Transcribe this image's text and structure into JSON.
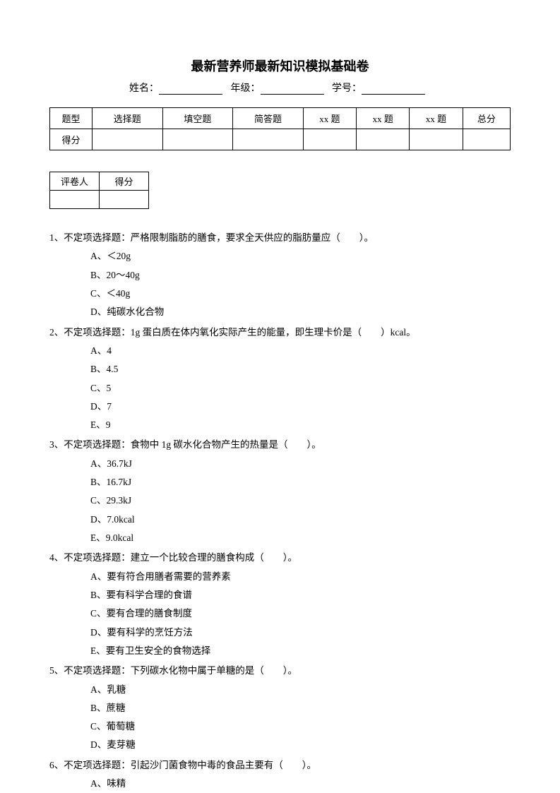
{
  "title": "最新营养师最新知识模拟基础卷",
  "info": {
    "name_label": "姓名：",
    "grade_label": " 年级：",
    "id_label": " 学号："
  },
  "score_table": {
    "row1": [
      "题型",
      "选择题",
      "填空题",
      "简答题",
      "xx 题",
      "xx 题",
      "xx 题",
      "总分"
    ],
    "row2_label": "得分"
  },
  "grader_table": {
    "grader": "评卷人",
    "score": "得分"
  },
  "questions": [
    {
      "num": "1、",
      "stem": "不定项选择题：严格限制脂肪的膳食，要求全天供应的脂肪量应（　　）。",
      "options": [
        "A、＜20g",
        "B、20～40g",
        "C、＜40g",
        "D、纯碳水化合物"
      ]
    },
    {
      "num": "2、",
      "stem": "不定项选择题：1g 蛋白质在体内氧化实际产生的能量，即生理卡价是（　　）kcal。",
      "options": [
        "A、4",
        "B、4.5",
        "C、5",
        "D、7",
        "E、9"
      ]
    },
    {
      "num": "3、",
      "stem": "不定项选择题：食物中 1g 碳水化合物产生的热量是（　　）。",
      "options": [
        "A、36.7kJ",
        "B、16.7kJ",
        "C、29.3kJ",
        "D、7.0kcal",
        "E、9.0kcal"
      ]
    },
    {
      "num": "4、",
      "stem": "不定项选择题：建立一个比较合理的膳食构成（　　）。",
      "options": [
        "A、要有符合用膳者需要的营养素",
        "B、要有科学合理的食谱",
        "C、要有合理的膳食制度",
        "D、要有科学的烹饪方法",
        "E、要有卫生安全的食物选择"
      ]
    },
    {
      "num": "5、",
      "stem": "不定项选择题：下列碳水化物中属于单糖的是（　　）。",
      "options": [
        "A、乳糖",
        "B、蔗糖",
        "C、葡萄糖",
        "D、麦芽糖"
      ]
    },
    {
      "num": "6、",
      "stem": "不定项选择题：引起沙门菌食物中毒的食品主要有（　　）。",
      "options": [
        "A、味精"
      ]
    }
  ]
}
